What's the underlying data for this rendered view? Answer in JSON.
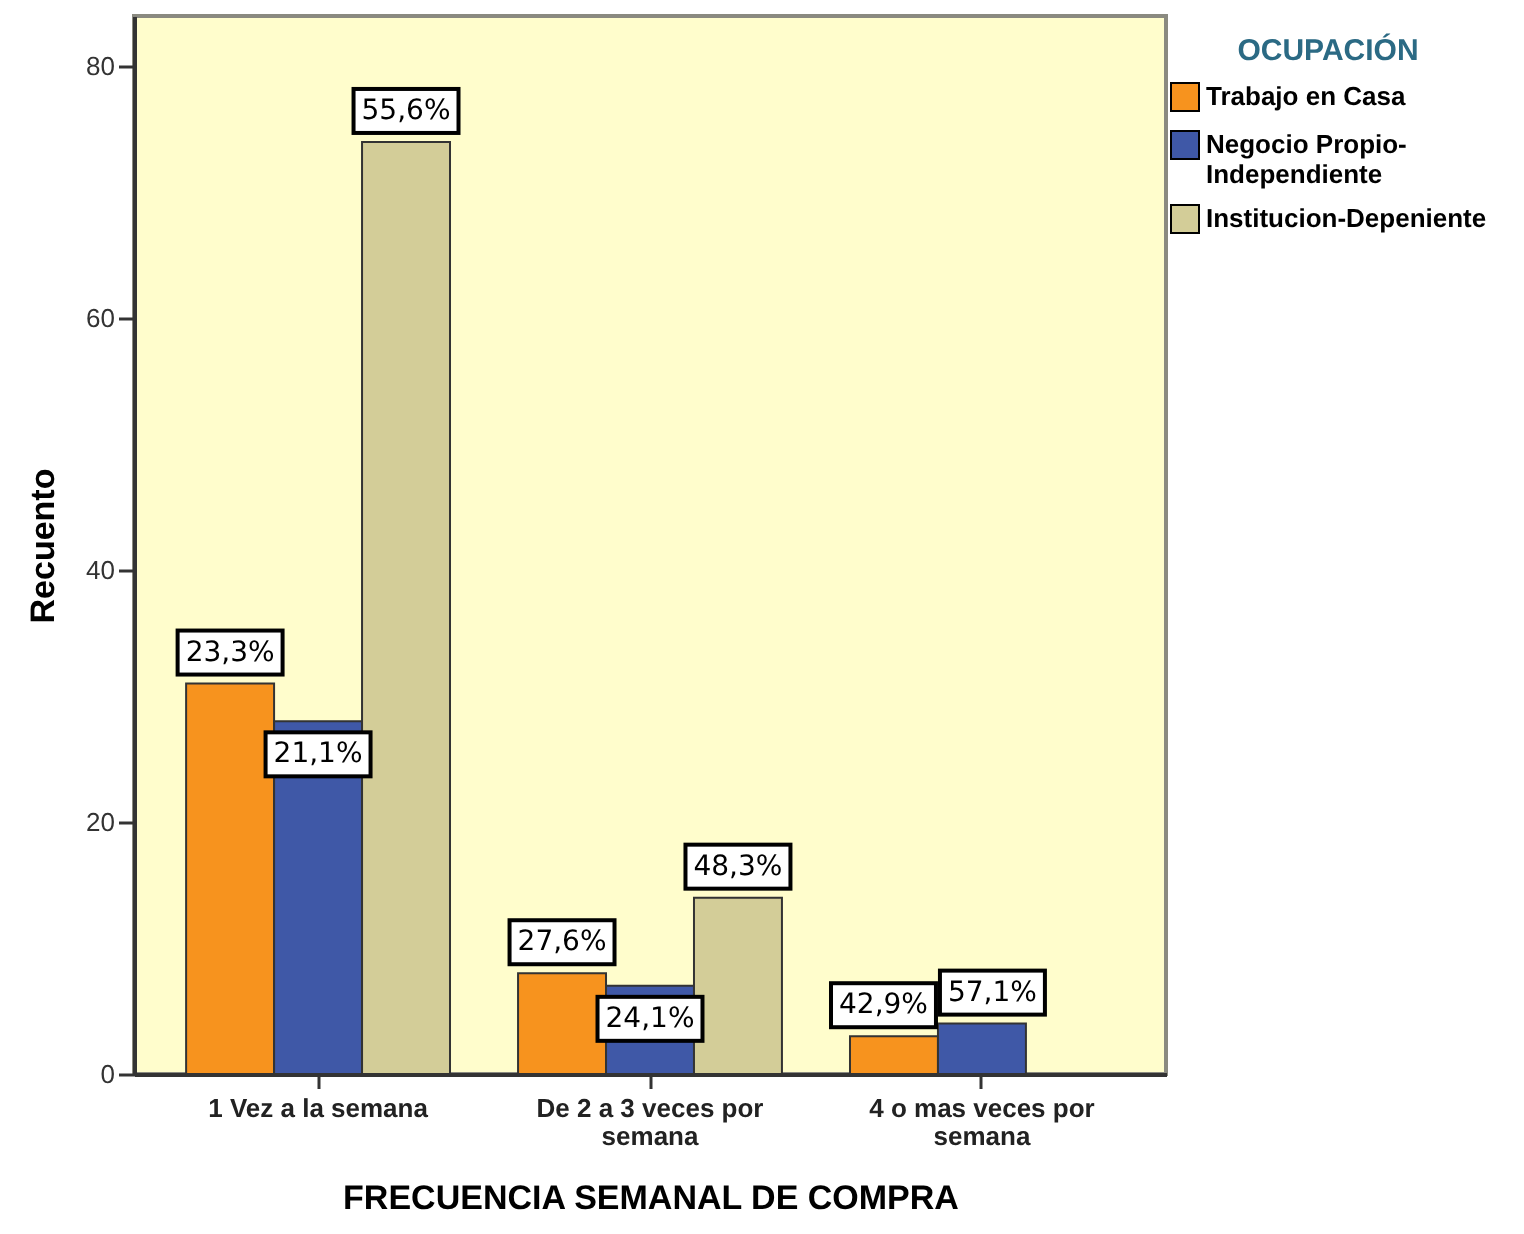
{
  "chart_data": {
    "type": "bar",
    "xlabel": "FRECUENCIA SEMANAL DE COMPRA",
    "ylabel": "Recuento",
    "legend_title": "OCUPACIÓN",
    "categories": [
      "1 Vez a la semana",
      "De 2 a 3 veces por semana",
      "4 o mas veces por semana"
    ],
    "series": [
      {
        "name": "Trabajo en Casa",
        "color": "#f7931e",
        "values": [
          31,
          8,
          3
        ]
      },
      {
        "name": "Negocio Propio-Independiente",
        "color": "#3f58a7",
        "values": [
          28,
          7,
          4
        ]
      },
      {
        "name": "Institucion-Depeniente",
        "color": "#d3cd98",
        "values": [
          74,
          14,
          null
        ]
      }
    ],
    "annotations": [
      "23,3%",
      "21,1%",
      "55,6%",
      "27,6%",
      "24,1%",
      "48,3%",
      "42,9%",
      "57,1%"
    ],
    "ylim": [
      0,
      84
    ],
    "yticks": [
      0,
      20,
      40,
      60,
      80
    ],
    "legend": "top right"
  }
}
